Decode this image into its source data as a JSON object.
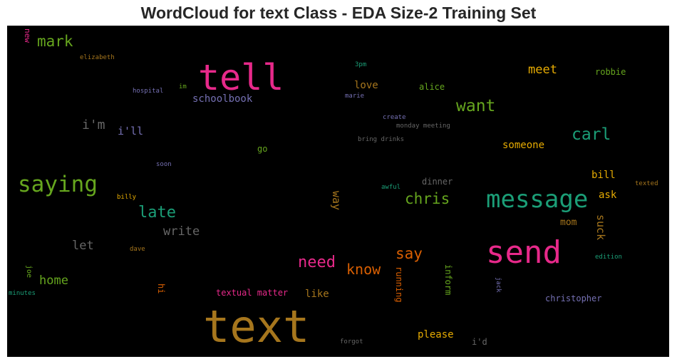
{
  "chart_data": {
    "type": "wordcloud",
    "title": "WordCloud for text Class - EDA Size-2 Training Set",
    "background": "#000000",
    "words": [
      {
        "text": "text",
        "weight": 1.0,
        "color": "#a6761d",
        "orientation": "horizontal"
      },
      {
        "text": "tell",
        "weight": 0.78,
        "color": "#e7298a",
        "orientation": "horizontal"
      },
      {
        "text": "send",
        "weight": 0.76,
        "color": "#e7298a",
        "orientation": "horizontal"
      },
      {
        "text": "message",
        "weight": 0.6,
        "color": "#1b9e77",
        "orientation": "horizontal"
      },
      {
        "text": "saying",
        "weight": 0.56,
        "color": "#66a61e",
        "orientation": "horizontal"
      },
      {
        "text": "want",
        "weight": 0.4,
        "color": "#66a61e",
        "orientation": "horizontal"
      },
      {
        "text": "carl",
        "weight": 0.4,
        "color": "#1b9e77",
        "orientation": "horizontal"
      },
      {
        "text": "late",
        "weight": 0.38,
        "color": "#1b9e77",
        "orientation": "horizontal"
      },
      {
        "text": "need",
        "weight": 0.38,
        "color": "#e7298a",
        "orientation": "horizontal"
      },
      {
        "text": "mark",
        "weight": 0.36,
        "color": "#66a61e",
        "orientation": "horizontal"
      },
      {
        "text": "chris",
        "weight": 0.36,
        "color": "#66a61e",
        "orientation": "horizontal"
      },
      {
        "text": "say",
        "weight": 0.36,
        "color": "#d95f02",
        "orientation": "horizontal"
      },
      {
        "text": "know",
        "weight": 0.34,
        "color": "#d95f02",
        "orientation": "horizontal"
      },
      {
        "text": "write",
        "weight": 0.3,
        "color": "#666666",
        "orientation": "horizontal"
      },
      {
        "text": "i'm",
        "weight": 0.3,
        "color": "#666666",
        "orientation": "horizontal"
      },
      {
        "text": "meet",
        "weight": 0.28,
        "color": "#e6ab02",
        "orientation": "horizontal"
      },
      {
        "text": "let",
        "weight": 0.28,
        "color": "#666666",
        "orientation": "horizontal"
      },
      {
        "text": "home",
        "weight": 0.26,
        "color": "#66a61e",
        "orientation": "horizontal"
      },
      {
        "text": "i'll",
        "weight": 0.26,
        "color": "#7570b3",
        "orientation": "horizontal"
      },
      {
        "text": "suck",
        "weight": 0.26,
        "color": "#a6761d",
        "orientation": "vertical"
      },
      {
        "text": "way",
        "weight": 0.26,
        "color": "#a6761d",
        "orientation": "vertical"
      },
      {
        "text": "schoolbook",
        "weight": 0.22,
        "color": "#7570b3",
        "orientation": "horizontal"
      },
      {
        "text": "love",
        "weight": 0.22,
        "color": "#a6761d",
        "orientation": "horizontal"
      },
      {
        "text": "someone",
        "weight": 0.22,
        "color": "#e6ab02",
        "orientation": "horizontal"
      },
      {
        "text": "bill",
        "weight": 0.22,
        "color": "#e6ab02",
        "orientation": "horizontal"
      },
      {
        "text": "ask",
        "weight": 0.22,
        "color": "#e6ab02",
        "orientation": "horizontal"
      },
      {
        "text": "mom",
        "weight": 0.22,
        "color": "#a6761d",
        "orientation": "horizontal"
      },
      {
        "text": "please",
        "weight": 0.22,
        "color": "#e6ab02",
        "orientation": "horizontal"
      },
      {
        "text": "like",
        "weight": 0.2,
        "color": "#a6761d",
        "orientation": "horizontal"
      },
      {
        "text": "alice",
        "weight": 0.18,
        "color": "#66a61e",
        "orientation": "horizontal"
      },
      {
        "text": "robbie",
        "weight": 0.18,
        "color": "#66a61e",
        "orientation": "horizontal"
      },
      {
        "text": "christopher",
        "weight": 0.18,
        "color": "#7570b3",
        "orientation": "horizontal"
      },
      {
        "text": "textual matter",
        "weight": 0.18,
        "color": "#e7298a",
        "orientation": "horizontal"
      },
      {
        "text": "dinner",
        "weight": 0.18,
        "color": "#666666",
        "orientation": "horizontal"
      },
      {
        "text": "i'd",
        "weight": 0.18,
        "color": "#666666",
        "orientation": "horizontal"
      },
      {
        "text": "running",
        "weight": 0.18,
        "color": "#d95f02",
        "orientation": "vertical"
      },
      {
        "text": "inform",
        "weight": 0.18,
        "color": "#66a61e",
        "orientation": "vertical"
      },
      {
        "text": "go",
        "weight": 0.16,
        "color": "#66a61e",
        "orientation": "horizontal"
      },
      {
        "text": "hi",
        "weight": 0.16,
        "color": "#d95f02",
        "orientation": "vertical"
      },
      {
        "text": "new",
        "weight": 0.16,
        "color": "#e7298a",
        "orientation": "vertical"
      },
      {
        "text": "joe",
        "weight": 0.14,
        "color": "#66a61e",
        "orientation": "vertical"
      },
      {
        "text": "elizabeth",
        "weight": 0.12,
        "color": "#a6761d",
        "orientation": "horizontal"
      },
      {
        "text": "hospital",
        "weight": 0.12,
        "color": "#7570b3",
        "orientation": "horizontal"
      },
      {
        "text": "im",
        "weight": 0.12,
        "color": "#66a61e",
        "orientation": "horizontal"
      },
      {
        "text": "3pm",
        "weight": 0.12,
        "color": "#1b9e77",
        "orientation": "horizontal"
      },
      {
        "text": "marie",
        "weight": 0.12,
        "color": "#7570b3",
        "orientation": "horizontal"
      },
      {
        "text": "create",
        "weight": 0.12,
        "color": "#7570b3",
        "orientation": "horizontal"
      },
      {
        "text": "monday meeting",
        "weight": 0.12,
        "color": "#666666",
        "orientation": "horizontal"
      },
      {
        "text": "bring drinks",
        "weight": 0.12,
        "color": "#666666",
        "orientation": "horizontal"
      },
      {
        "text": "soon",
        "weight": 0.12,
        "color": "#7570b3",
        "orientation": "horizontal"
      },
      {
        "text": "billy",
        "weight": 0.12,
        "color": "#e6ab02",
        "orientation": "horizontal"
      },
      {
        "text": "awful",
        "weight": 0.12,
        "color": "#1b9e77",
        "orientation": "horizontal"
      },
      {
        "text": "texted",
        "weight": 0.12,
        "color": "#a6761d",
        "orientation": "horizontal"
      },
      {
        "text": "dave",
        "weight": 0.12,
        "color": "#a6761d",
        "orientation": "horizontal"
      },
      {
        "text": "edition",
        "weight": 0.12,
        "color": "#1b9e77",
        "orientation": "horizontal"
      },
      {
        "text": "minutes",
        "weight": 0.12,
        "color": "#1b9e77",
        "orientation": "horizontal"
      },
      {
        "text": "jack",
        "weight": 0.12,
        "color": "#7570b3",
        "orientation": "vertical"
      },
      {
        "text": "forgot",
        "weight": 0.12,
        "color": "#666666",
        "orientation": "horizontal"
      }
    ]
  }
}
